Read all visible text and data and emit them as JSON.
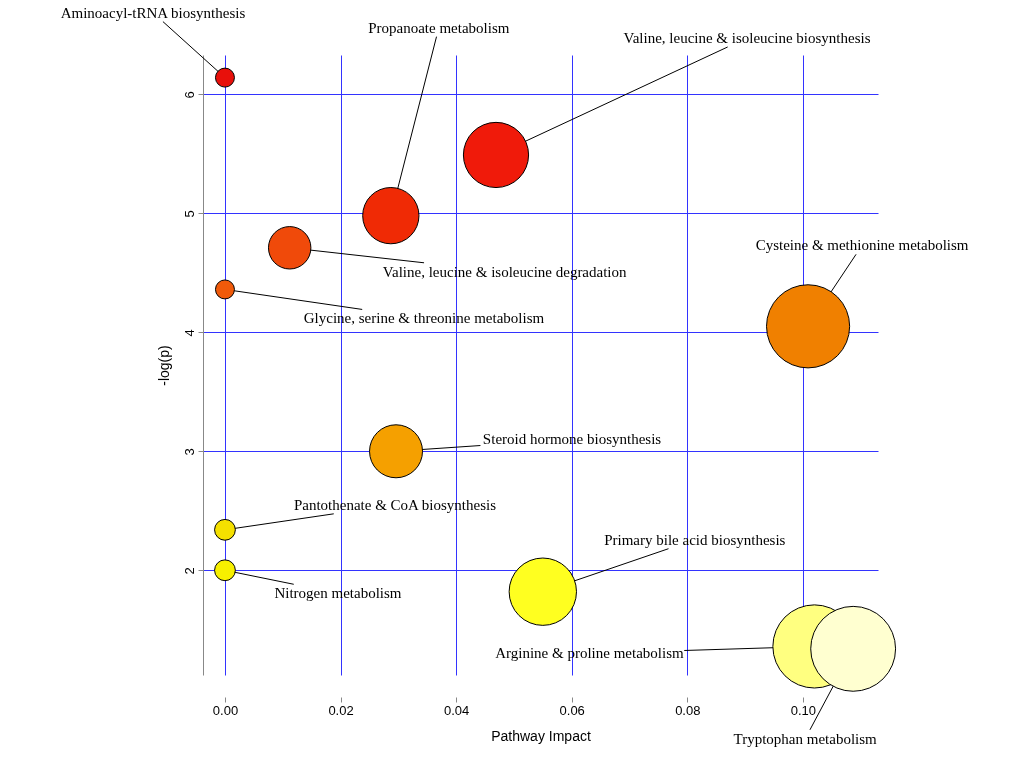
{
  "chart_data": {
    "type": "bubble",
    "xlabel": "Pathway Impact",
    "ylabel": "-log(p)",
    "x": [
      0.0,
      0.0287,
      0.0469,
      0.0112,
      0.0,
      0.1009,
      0.0296,
      0.0,
      0.0,
      0.055,
      0.102,
      0.1087
    ],
    "values": [
      6.14,
      4.98,
      5.49,
      4.71,
      4.36,
      4.05,
      3.0,
      2.34,
      2.0,
      1.82,
      1.36,
      1.34
    ],
    "sizes": [
      0.05,
      0.44,
      0.59,
      0.25,
      0.05,
      0.96,
      0.39,
      0.06,
      0.06,
      0.63,
      0.96,
      1.0
    ],
    "colors": [
      "#e8100b",
      "#f02a05",
      "#f01a0a",
      "#f04a0a",
      "#f05a0a",
      "#f08000",
      "#f5a000",
      "#f5e000",
      "#f7f000",
      "#ffff20",
      "#ffff80",
      "#ffffd0"
    ],
    "xlim": [
      -0.0038,
      0.113
    ],
    "ylim": [
      1.12,
      6.33
    ],
    "xticks": [
      {
        "value": 0,
        "label": "0.00"
      },
      {
        "value": 0.02,
        "label": "0.02"
      },
      {
        "value": 0.04,
        "label": "0.04"
      },
      {
        "value": 0.06,
        "label": "0.06"
      },
      {
        "value": 0.08,
        "label": "0.08"
      },
      {
        "value": 0.1,
        "label": "0.10"
      }
    ],
    "yticks": [
      2,
      3,
      4,
      5,
      6
    ],
    "grid": true,
    "marker": "circle",
    "annotations": [
      {
        "text": "Aminoacyl-tRNA biosynthesis",
        "x": 0.0,
        "y": 6.14
      },
      {
        "text": "Propanoate metabolism",
        "x": 0.0287,
        "y": 4.98
      },
      {
        "text": "Valine, leucine & isoleucine biosynthesis",
        "x": 0.0469,
        "y": 5.49
      },
      {
        "text": "Valine, leucine & isoleucine degradation",
        "x": 0.0112,
        "y": 4.71
      },
      {
        "text": "Glycine, serine & threonine metabolism",
        "x": 0.0,
        "y": 4.36
      },
      {
        "text": "Cysteine & methionine metabolism",
        "x": 0.1009,
        "y": 4.05
      },
      {
        "text": "Steroid hormone biosynthesis",
        "x": 0.0296,
        "y": 3.0
      },
      {
        "text": "Pantothenate & CoA biosynthesis",
        "x": 0.0,
        "y": 2.34
      },
      {
        "text": "Nitrogen metabolism",
        "x": 0.0,
        "y": 2.0
      },
      {
        "text": "Primary bile acid biosynthesis",
        "x": 0.055,
        "y": 1.82
      },
      {
        "text": "Arginine & proline metabolism",
        "x": 0.102,
        "y": 1.36
      },
      {
        "text": "Tryptophan metabolism",
        "x": 0.1087,
        "y": 1.34
      }
    ]
  }
}
